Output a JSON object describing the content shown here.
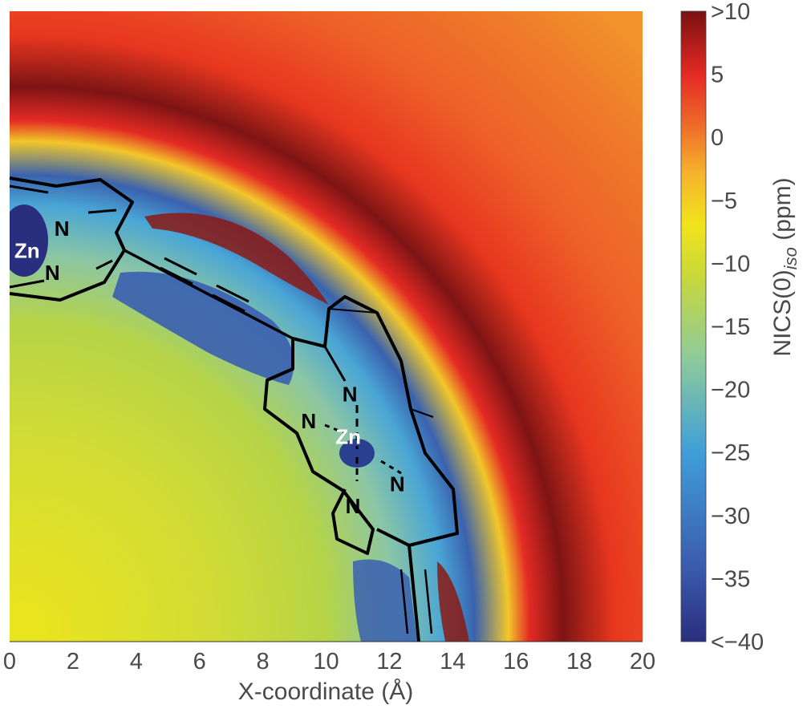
{
  "chart_data": {
    "type": "heatmap",
    "title": "",
    "xlabel": "X-coordinate (Å)",
    "ylabel": "",
    "xlim": [
      0,
      20
    ],
    "ylim": [
      0,
      20
    ],
    "x_ticks": [
      "0",
      "2",
      "4",
      "6",
      "8",
      "10",
      "12",
      "14",
      "16",
      "18",
      "20"
    ],
    "colorbar": {
      "label_main": "NICS(0)",
      "label_sub": "iso",
      "label_unit": " (ppm)",
      "range": [
        -40,
        10
      ],
      "ticks": [
        {
          "value": 10,
          "label": ">10"
        },
        {
          "value": 5,
          "label": "5"
        },
        {
          "value": 0,
          "label": "0"
        },
        {
          "value": -5,
          "label": "−5"
        },
        {
          "value": -10,
          "label": "−10"
        },
        {
          "value": -15,
          "label": "−15"
        },
        {
          "value": -20,
          "label": "−20"
        },
        {
          "value": -25,
          "label": "−25"
        },
        {
          "value": -30,
          "label": "−30"
        },
        {
          "value": -35,
          "label": "−35"
        },
        {
          "value": -40,
          "label": "<−40"
        }
      ],
      "colors": [
        "#2a2e7e",
        "#3b5cae",
        "#3f9ed8",
        "#8ecb9a",
        "#c8d83a",
        "#f1e31b",
        "#f6b52b",
        "#ef6a2a",
        "#e42a24",
        "#7a1010"
      ]
    },
    "annotations": {
      "atoms": [
        {
          "label": "Zn",
          "x": 0.55,
          "y": 12.4,
          "kind": "zn"
        },
        {
          "label": "N",
          "x": 1.65,
          "y": 13.1,
          "kind": "n"
        },
        {
          "label": "N",
          "x": 1.35,
          "y": 11.7,
          "kind": "n"
        },
        {
          "label": "Zn",
          "x": 10.7,
          "y": 6.5,
          "kind": "zn"
        },
        {
          "label": "N",
          "x": 10.75,
          "y": 7.85,
          "kind": "n"
        },
        {
          "label": "N",
          "x": 9.45,
          "y": 7.0,
          "kind": "n"
        },
        {
          "label": "N",
          "x": 12.25,
          "y": 5.0,
          "kind": "n"
        },
        {
          "label": "N",
          "x": 10.85,
          "y": 4.3,
          "kind": "n"
        }
      ]
    }
  }
}
